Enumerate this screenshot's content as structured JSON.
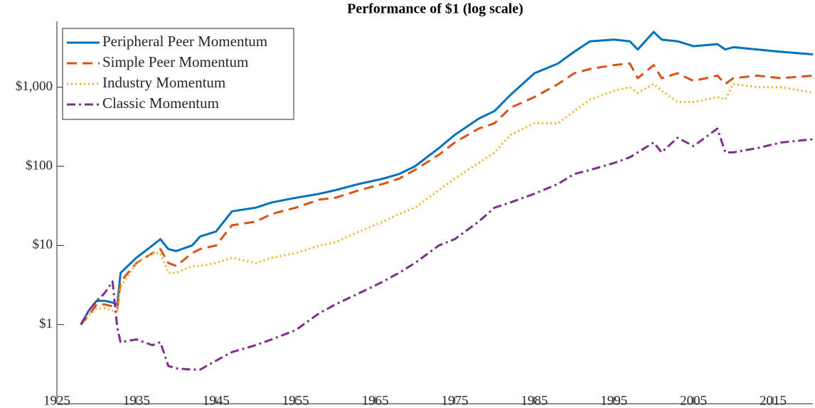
{
  "chart_data": {
    "type": "line",
    "title": "Performance of $1 (log scale)",
    "yscale": "log",
    "legend": "upper left",
    "xlim": [
      1925,
      2020
    ],
    "xticks": [
      1925,
      1935,
      1945,
      1955,
      1965,
      1975,
      1985,
      1995,
      2005,
      2015
    ],
    "ylim": [
      0.1,
      6800
    ],
    "yticks": [
      {
        "value": 1,
        "label": "$1"
      },
      {
        "value": 10,
        "label": "$10"
      },
      {
        "value": 100,
        "label": "$100"
      },
      {
        "value": 1000,
        "label": "$1,000"
      }
    ],
    "x": [
      1928,
      1929,
      1930,
      1931,
      1932,
      1932.6,
      1933,
      1935,
      1937,
      1938,
      1939,
      1940,
      1942,
      1943,
      1945,
      1947,
      1950,
      1952,
      1955,
      1958,
      1960,
      1963,
      1966,
      1968,
      1970,
      1973,
      1975,
      1978,
      1980,
      1982,
      1985,
      1988,
      1990,
      1992,
      1995,
      1997,
      1998,
      2000,
      2001,
      2003,
      2005,
      2008,
      2009,
      2010,
      2013,
      2016,
      2020
    ],
    "series": [
      {
        "name": "Peripheral Peer Momentum",
        "color": "#0072bd",
        "linestyle": "solid",
        "values": [
          1,
          1.5,
          2,
          2,
          1.9,
          1.8,
          4.5,
          7,
          10,
          12,
          9,
          8.5,
          10,
          13,
          15,
          27,
          30,
          35,
          40,
          45,
          50,
          60,
          70,
          80,
          100,
          170,
          250,
          400,
          500,
          800,
          1500,
          2000,
          2800,
          3800,
          4000,
          3800,
          3000,
          5000,
          4000,
          3800,
          3300,
          3500,
          3000,
          3200,
          3000,
          2800,
          2600
        ]
      },
      {
        "name": "Simple Peer Momentum",
        "color": "#d95319",
        "linestyle": "dashed",
        "values": [
          1,
          1.3,
          1.8,
          1.8,
          1.7,
          1.6,
          3.5,
          6,
          8,
          9,
          6,
          5.5,
          8,
          9,
          10,
          18,
          20,
          25,
          30,
          38,
          40,
          50,
          60,
          70,
          90,
          140,
          200,
          300,
          350,
          550,
          750,
          1100,
          1500,
          1700,
          1900,
          2000,
          1300,
          1900,
          1300,
          1500,
          1200,
          1400,
          1100,
          1300,
          1400,
          1300,
          1400
        ]
      },
      {
        "name": "Industry Momentum",
        "color": "#edb120",
        "linestyle": "dotted",
        "values": [
          1,
          1.3,
          1.6,
          1.6,
          1.5,
          1.5,
          3,
          6,
          8,
          8,
          4.5,
          4.5,
          5.5,
          5.5,
          6,
          7,
          6,
          7,
          8,
          10,
          11,
          15,
          20,
          25,
          30,
          50,
          70,
          110,
          150,
          250,
          350,
          350,
          500,
          700,
          900,
          1000,
          850,
          1100,
          900,
          650,
          650,
          750,
          700,
          1100,
          1000,
          1000,
          850
        ]
      },
      {
        "name": "Classic Momentum",
        "color": "#7e2f8e",
        "linestyle": "dashdot",
        "values": [
          1,
          1.5,
          2,
          2.5,
          3.5,
          0.9,
          0.6,
          0.65,
          0.55,
          0.6,
          0.3,
          0.28,
          0.27,
          0.27,
          0.35,
          0.45,
          0.55,
          0.65,
          0.85,
          1.4,
          1.8,
          2.5,
          3.5,
          4.5,
          6,
          10,
          12,
          20,
          30,
          35,
          45,
          60,
          80,
          90,
          110,
          130,
          150,
          200,
          150,
          230,
          180,
          300,
          150,
          150,
          170,
          200,
          220
        ]
      }
    ]
  }
}
